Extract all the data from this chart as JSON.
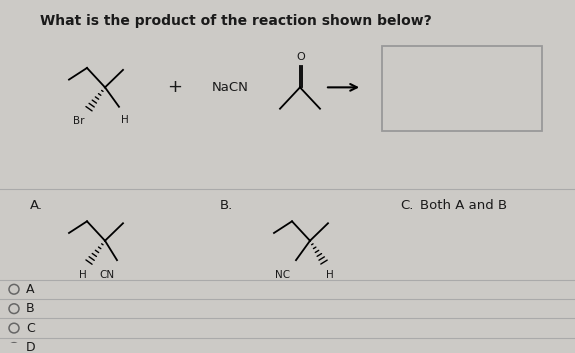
{
  "title": "What is the product of the reaction shown below?",
  "background_color": "#cccac6",
  "text_color": "#1a1a1a",
  "radio_options": [
    "A",
    "B",
    "C",
    "D"
  ],
  "answer_c_text": "Both A and B",
  "nacn_label": "NaCN",
  "box_color": "#b8b4b0",
  "line_color": "#aaaaaa"
}
